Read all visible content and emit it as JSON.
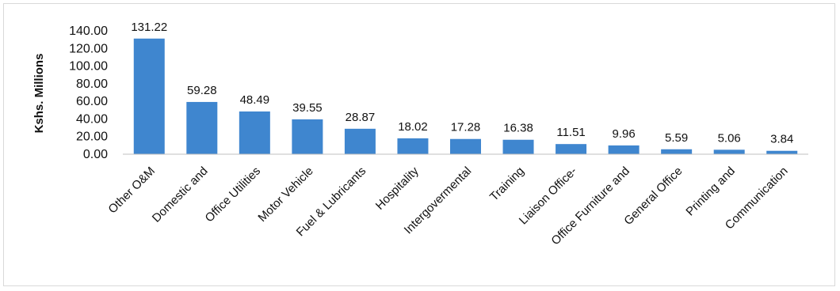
{
  "chart_data": {
    "type": "bar",
    "title": "",
    "xlabel": "",
    "ylabel": "Kshs. Millions",
    "ylim": [
      0,
      140
    ],
    "yticks": [
      "0.00",
      "20.00",
      "40.00",
      "60.00",
      "80.00",
      "100.00",
      "120.00",
      "140.00"
    ],
    "grid": false,
    "legend": "none",
    "bar_color": "#3f86cf",
    "categories": [
      "Other O&M",
      "Domestic and",
      "Office Utilities",
      "Motor Vehicle",
      "Fuel & Lubricants",
      "Hospitality",
      "Intergovermental",
      "Training",
      "Liaison Office-",
      "Office Furniture and",
      "General Office",
      "Printing and",
      "Communication"
    ],
    "values": [
      131.22,
      59.28,
      48.49,
      39.55,
      28.87,
      18.02,
      17.28,
      16.38,
      11.51,
      9.96,
      5.59,
      5.06,
      3.84
    ],
    "data_labels": [
      "131.22",
      "59.28",
      "48.49",
      "39.55",
      "28.87",
      "18.02",
      "17.28",
      "16.38",
      "11.51",
      "9.96",
      "5.59",
      "5.06",
      "3.84"
    ]
  }
}
